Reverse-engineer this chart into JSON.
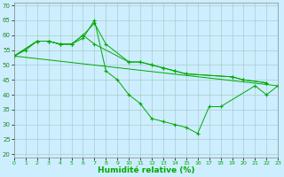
{
  "xlabel": "Humidité relative (%)",
  "bg_color": "#cceeff",
  "grid_color": "#aacccc",
  "line_color": "#00aa00",
  "xlim": [
    0,
    23
  ],
  "ylim": [
    19,
    71
  ],
  "yticks": [
    20,
    25,
    30,
    35,
    40,
    45,
    50,
    55,
    60,
    65,
    70
  ],
  "xticks": [
    0,
    1,
    2,
    3,
    4,
    5,
    6,
    7,
    8,
    9,
    10,
    11,
    12,
    13,
    14,
    15,
    16,
    17,
    18,
    19,
    20,
    21,
    22,
    23
  ],
  "series": [
    {
      "x": [
        0,
        1,
        2,
        3,
        4,
        5,
        6,
        7,
        8,
        9,
        10,
        11,
        12,
        13,
        14,
        15,
        16,
        17,
        18,
        21,
        22,
        23
      ],
      "y": [
        53,
        55,
        58,
        58,
        57,
        57,
        59,
        65,
        48,
        45,
        40,
        37,
        32,
        31,
        30,
        29,
        27,
        36,
        36,
        43,
        40,
        43
      ]
    },
    {
      "x": [
        0,
        2,
        3,
        4,
        5,
        6,
        7,
        8,
        10,
        11,
        12,
        13,
        14,
        15,
        19,
        20,
        22
      ],
      "y": [
        53,
        58,
        58,
        57,
        57,
        60,
        64,
        57,
        51,
        51,
        50,
        49,
        48,
        47,
        46,
        45,
        44
      ]
    },
    {
      "x": [
        0,
        2,
        3,
        4,
        5,
        6,
        7,
        10,
        11,
        12,
        13,
        14,
        15,
        19,
        20,
        22
      ],
      "y": [
        53,
        58,
        58,
        57,
        57,
        60,
        57,
        51,
        51,
        50,
        49,
        48,
        47,
        46,
        45,
        44
      ]
    },
    {
      "x": [
        0,
        23
      ],
      "y": [
        53,
        43
      ]
    }
  ]
}
